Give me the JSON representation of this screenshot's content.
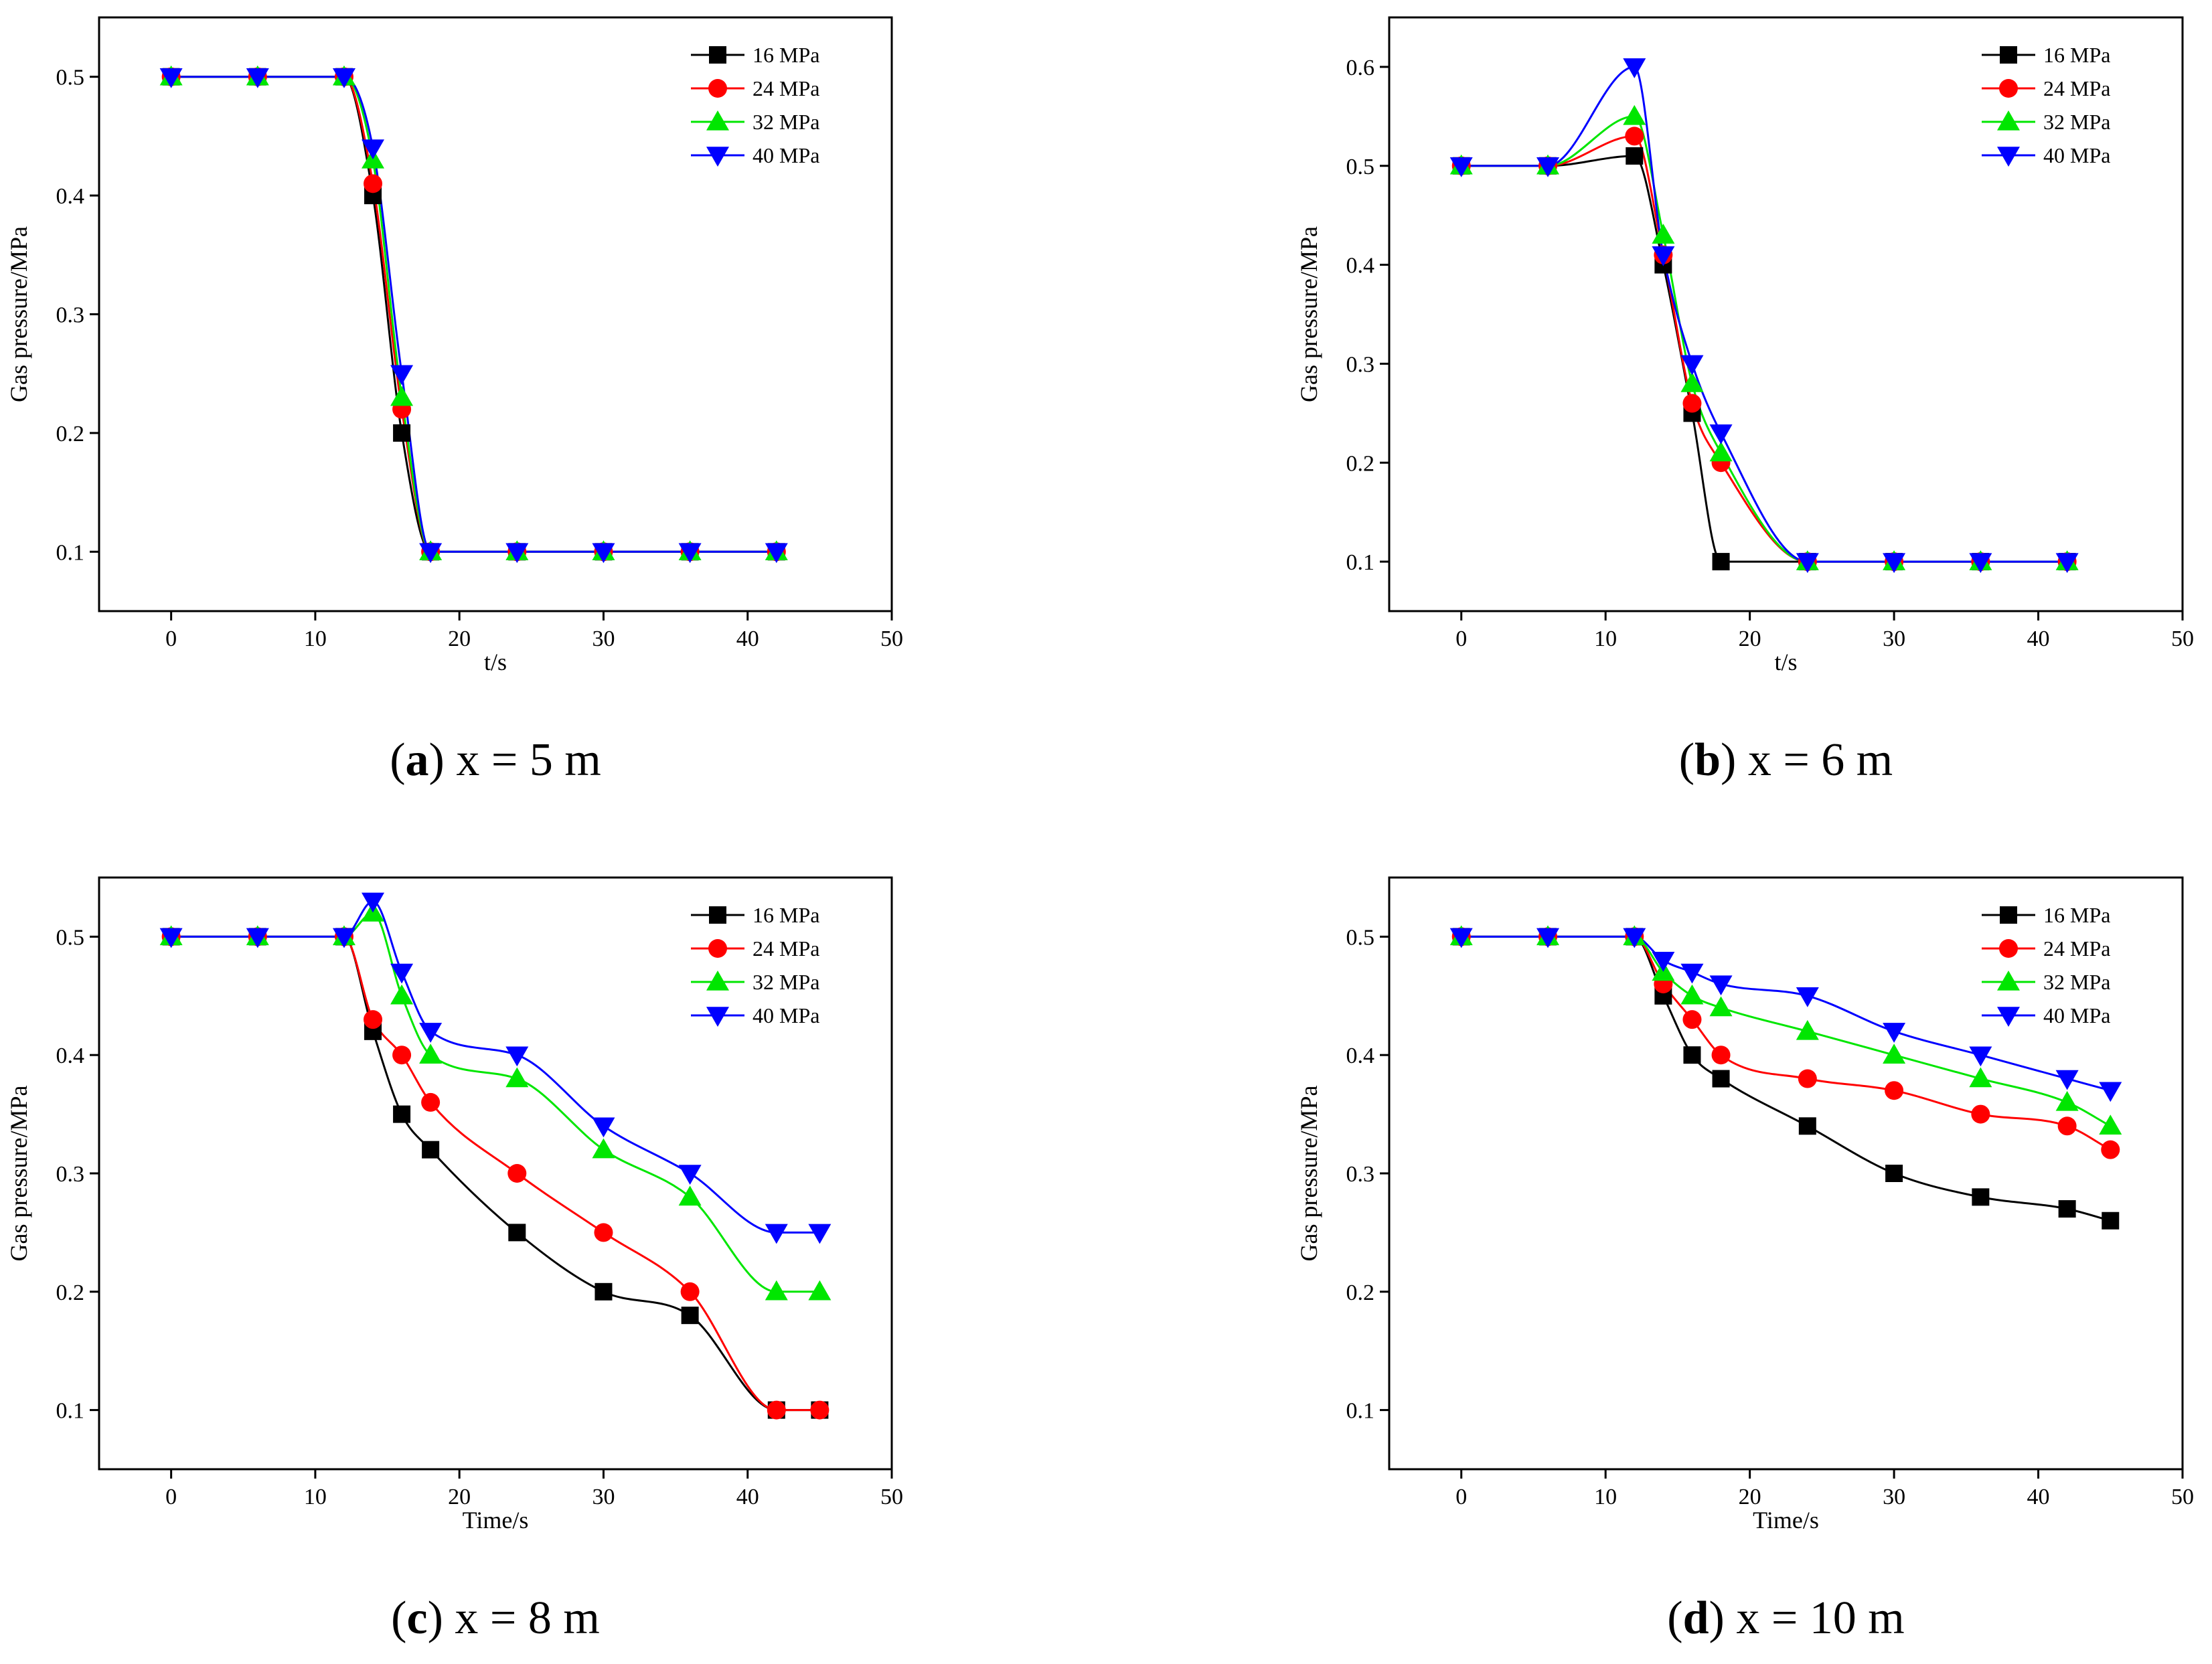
{
  "figure": {
    "series_colors": {
      "16 MPa": "#000000",
      "24 MPa": "#ff0000",
      "32 MPa": "#00e600",
      "40 MPa": "#0000ff"
    },
    "marker_names": {
      "16 MPa": "square",
      "24 MPa": "circle",
      "32 MPa": "triangle-up",
      "40 MPa": "triangle-down"
    }
  },
  "chart_data": [
    {
      "id": "a",
      "type": "line",
      "caption_letter": "a",
      "caption_text": "x = 5 m",
      "xlabel": "t/s",
      "ylabel": "Gas pressure/MPa",
      "xlim": [
        -5,
        50
      ],
      "ylim": [
        0.05,
        0.55
      ],
      "xticks": [
        0,
        10,
        20,
        30,
        40,
        50
      ],
      "yticks": [
        0.1,
        0.2,
        0.3,
        0.4,
        0.5
      ],
      "legend": [
        "16 MPa",
        "24 MPa",
        "32 MPa",
        "40 MPa"
      ],
      "legend_position": "top-right",
      "series": [
        {
          "name": "16 MPa",
          "x": [
            0,
            6,
            12,
            14,
            16,
            18,
            24,
            30,
            36,
            42
          ],
          "y": [
            0.5,
            0.5,
            0.5,
            0.4,
            0.2,
            0.1,
            0.1,
            0.1,
            0.1,
            0.1
          ]
        },
        {
          "name": "24 MPa",
          "x": [
            0,
            6,
            12,
            14,
            16,
            18,
            24,
            30,
            36,
            42
          ],
          "y": [
            0.5,
            0.5,
            0.5,
            0.41,
            0.22,
            0.1,
            0.1,
            0.1,
            0.1,
            0.1
          ]
        },
        {
          "name": "32 MPa",
          "x": [
            0,
            6,
            12,
            14,
            16,
            18,
            24,
            30,
            36,
            42
          ],
          "y": [
            0.5,
            0.5,
            0.5,
            0.43,
            0.23,
            0.1,
            0.1,
            0.1,
            0.1,
            0.1
          ]
        },
        {
          "name": "40 MPa",
          "x": [
            0,
            6,
            12,
            14,
            16,
            18,
            24,
            30,
            36,
            42
          ],
          "y": [
            0.5,
            0.5,
            0.5,
            0.44,
            0.25,
            0.1,
            0.1,
            0.1,
            0.1,
            0.1
          ]
        }
      ]
    },
    {
      "id": "b",
      "type": "line",
      "caption_letter": "b",
      "caption_text": "x = 6 m",
      "xlabel": "t/s",
      "ylabel": "Gas pressure/MPa",
      "xlim": [
        -5,
        50
      ],
      "ylim": [
        0.05,
        0.65
      ],
      "xticks": [
        0,
        10,
        20,
        30,
        40,
        50
      ],
      "yticks": [
        0.1,
        0.2,
        0.3,
        0.4,
        0.5,
        0.6
      ],
      "legend": [
        "16 MPa",
        "24 MPa",
        "32 MPa",
        "40 MPa"
      ],
      "legend_position": "top-right",
      "series": [
        {
          "name": "16 MPa",
          "x": [
            0,
            6,
            12,
            14,
            16,
            18,
            24,
            30,
            36,
            42
          ],
          "y": [
            0.5,
            0.5,
            0.51,
            0.4,
            0.25,
            0.1,
            0.1,
            0.1,
            0.1,
            0.1
          ]
        },
        {
          "name": "24 MPa",
          "x": [
            0,
            6,
            12,
            14,
            16,
            18,
            24,
            30,
            36,
            42
          ],
          "y": [
            0.5,
            0.5,
            0.53,
            0.41,
            0.26,
            0.2,
            0.1,
            0.1,
            0.1,
            0.1
          ]
        },
        {
          "name": "32 MPa",
          "x": [
            0,
            6,
            12,
            14,
            16,
            18,
            24,
            30,
            36,
            42
          ],
          "y": [
            0.5,
            0.5,
            0.55,
            0.43,
            0.28,
            0.21,
            0.1,
            0.1,
            0.1,
            0.1
          ]
        },
        {
          "name": "40 MPa",
          "x": [
            0,
            6,
            12,
            14,
            16,
            18,
            24,
            30,
            36,
            42
          ],
          "y": [
            0.5,
            0.5,
            0.6,
            0.41,
            0.3,
            0.23,
            0.1,
            0.1,
            0.1,
            0.1
          ]
        }
      ]
    },
    {
      "id": "c",
      "type": "line",
      "caption_letter": "c",
      "caption_text": "x = 8 m",
      "xlabel": "Time/s",
      "ylabel": "Gas pressure/MPa",
      "xlim": [
        -5,
        50
      ],
      "ylim": [
        0.05,
        0.55
      ],
      "xticks": [
        0,
        10,
        20,
        30,
        40,
        50
      ],
      "yticks": [
        0.1,
        0.2,
        0.3,
        0.4,
        0.5
      ],
      "legend": [
        "16 MPa",
        "24 MPa",
        "32 MPa",
        "40 MPa"
      ],
      "legend_position": "top-right",
      "series": [
        {
          "name": "16 MPa",
          "x": [
            0,
            6,
            12,
            14,
            16,
            18,
            24,
            30,
            36,
            42,
            45
          ],
          "y": [
            0.5,
            0.5,
            0.5,
            0.42,
            0.35,
            0.32,
            0.25,
            0.2,
            0.18,
            0.1,
            0.1
          ]
        },
        {
          "name": "24 MPa",
          "x": [
            0,
            6,
            12,
            14,
            16,
            18,
            24,
            30,
            36,
            42,
            45
          ],
          "y": [
            0.5,
            0.5,
            0.5,
            0.43,
            0.4,
            0.36,
            0.3,
            0.25,
            0.2,
            0.1,
            0.1
          ]
        },
        {
          "name": "32 MPa",
          "x": [
            0,
            6,
            12,
            14,
            16,
            18,
            24,
            30,
            36,
            42,
            45
          ],
          "y": [
            0.5,
            0.5,
            0.5,
            0.52,
            0.45,
            0.4,
            0.38,
            0.32,
            0.28,
            0.2,
            0.2
          ]
        },
        {
          "name": "40 MPa",
          "x": [
            0,
            6,
            12,
            14,
            16,
            18,
            24,
            30,
            36,
            42,
            45
          ],
          "y": [
            0.5,
            0.5,
            0.5,
            0.53,
            0.47,
            0.42,
            0.4,
            0.34,
            0.3,
            0.25,
            0.25
          ]
        }
      ]
    },
    {
      "id": "d",
      "type": "line",
      "caption_letter": "d",
      "caption_text": "x = 10 m",
      "xlabel": "Time/s",
      "ylabel": "Gas pressure/MPa",
      "xlim": [
        -5,
        50
      ],
      "ylim": [
        0.05,
        0.55
      ],
      "xticks": [
        0,
        10,
        20,
        30,
        40,
        50
      ],
      "yticks": [
        0.1,
        0.2,
        0.3,
        0.4,
        0.5
      ],
      "legend": [
        "16 MPa",
        "24 MPa",
        "32 MPa",
        "40 MPa"
      ],
      "legend_position": "top-right",
      "series": [
        {
          "name": "16 MPa",
          "x": [
            0,
            6,
            12,
            14,
            16,
            18,
            24,
            30,
            36,
            42,
            45
          ],
          "y": [
            0.5,
            0.5,
            0.5,
            0.45,
            0.4,
            0.38,
            0.34,
            0.3,
            0.28,
            0.27,
            0.26
          ]
        },
        {
          "name": "24 MPa",
          "x": [
            0,
            6,
            12,
            14,
            16,
            18,
            24,
            30,
            36,
            42,
            45
          ],
          "y": [
            0.5,
            0.5,
            0.5,
            0.46,
            0.43,
            0.4,
            0.38,
            0.37,
            0.35,
            0.34,
            0.32
          ]
        },
        {
          "name": "32 MPa",
          "x": [
            0,
            6,
            12,
            14,
            16,
            18,
            24,
            30,
            36,
            42,
            45
          ],
          "y": [
            0.5,
            0.5,
            0.5,
            0.47,
            0.45,
            0.44,
            0.42,
            0.4,
            0.38,
            0.36,
            0.34
          ]
        },
        {
          "name": "40 MPa",
          "x": [
            0,
            6,
            12,
            14,
            16,
            18,
            24,
            30,
            36,
            42,
            45
          ],
          "y": [
            0.5,
            0.5,
            0.5,
            0.48,
            0.47,
            0.46,
            0.45,
            0.42,
            0.4,
            0.38,
            0.37
          ]
        }
      ]
    }
  ]
}
